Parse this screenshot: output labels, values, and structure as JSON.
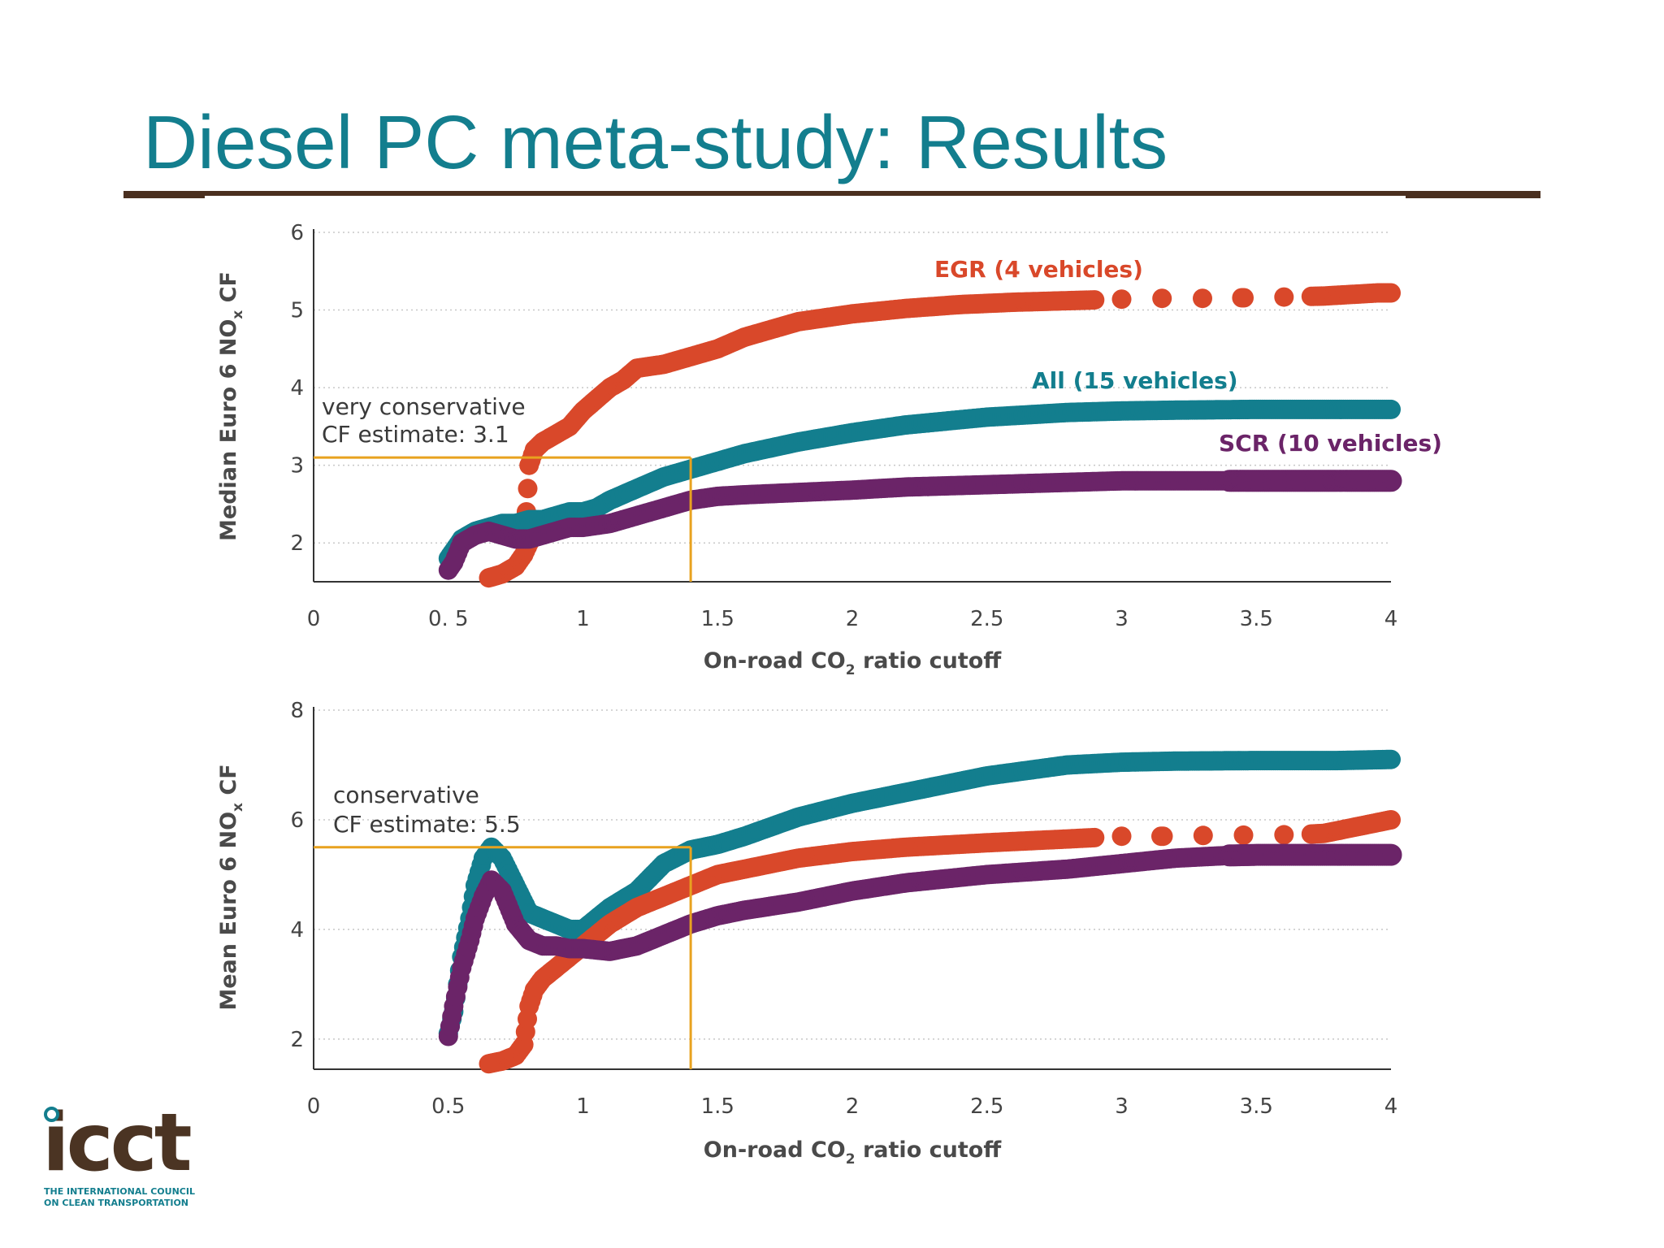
{
  "slide": {
    "title": "Diesel PC meta-study: Results"
  },
  "colors": {
    "title": "#137e8e",
    "rule": "#4a2f1f",
    "egr": "#d9482a",
    "all": "#137e8e",
    "scr": "#6b2468",
    "cutoff_line": "#e8a21f",
    "axis": "#333333",
    "grid": "#c8c8c8"
  },
  "logo": {
    "word": "icct",
    "sub1": "THE INTERNATIONAL COUNCIL",
    "sub2": "ON CLEAN TRANSPORTATION"
  },
  "chart_data": [
    {
      "type": "scatter",
      "id": "median",
      "ylabel": "Median Euro 6 NOx CF",
      "xlabel": "On-road CO2 ratio cutoff",
      "xlim": [
        0,
        4
      ],
      "ylim": [
        1.5,
        6
      ],
      "x_ticks": [
        0,
        0.5,
        1,
        1.5,
        2,
        2.5,
        3,
        3.5,
        4
      ],
      "x_tick_labels": [
        "0",
        "0. 5",
        "1",
        "1.5",
        "2",
        "2.5",
        "3",
        "3.5",
        "4"
      ],
      "y_ticks": [
        2,
        3,
        4,
        5,
        6
      ],
      "grid": "horizontal-dotted",
      "annotation": {
        "lines": [
          "very conservative",
          "CF estimate: 3.1"
        ],
        "x": 1.4,
        "y": 3.1
      },
      "series": [
        {
          "name": "EGR (4 vehicles)",
          "color": "#d9482a",
          "label_at": [
            2.3,
            5.4
          ],
          "x": [
            0.65,
            0.7,
            0.75,
            0.78,
            0.8,
            0.79,
            0.8,
            0.82,
            0.85,
            0.9,
            0.95,
            1.0,
            1.05,
            1.1,
            1.15,
            1.2,
            1.3,
            1.4,
            1.5,
            1.6,
            1.7,
            1.8,
            2.0,
            2.2,
            2.4,
            2.6,
            2.8,
            2.9,
            3.0,
            3.15,
            3.3,
            3.5,
            3.65,
            3.75,
            3.85,
            3.95,
            4.0
          ],
          "y": [
            1.55,
            1.6,
            1.7,
            1.85,
            2.0,
            2.4,
            3.0,
            3.2,
            3.3,
            3.4,
            3.5,
            3.7,
            3.85,
            4.0,
            4.1,
            4.25,
            4.3,
            4.4,
            4.5,
            4.65,
            4.75,
            4.85,
            4.95,
            5.02,
            5.07,
            5.1,
            5.12,
            5.13,
            5.14,
            5.15,
            5.15,
            5.16,
            5.17,
            5.18,
            5.2,
            5.22,
            5.22
          ]
        },
        {
          "name": "All (15 vehicles)",
          "color": "#137e8e",
          "label_at": [
            2.7,
            3.95
          ],
          "x": [
            0.5,
            0.55,
            0.6,
            0.65,
            0.7,
            0.75,
            0.8,
            0.85,
            0.9,
            0.95,
            1.0,
            1.05,
            1.1,
            1.2,
            1.3,
            1.4,
            1.5,
            1.6,
            1.8,
            2.0,
            2.2,
            2.5,
            2.8,
            3.0,
            3.2,
            3.5,
            3.8,
            4.0
          ],
          "y": [
            1.8,
            2.05,
            2.15,
            2.2,
            2.25,
            2.25,
            2.3,
            2.3,
            2.35,
            2.4,
            2.4,
            2.45,
            2.55,
            2.7,
            2.85,
            2.95,
            3.05,
            3.15,
            3.3,
            3.42,
            3.52,
            3.62,
            3.68,
            3.7,
            3.71,
            3.72,
            3.72,
            3.72
          ]
        },
        {
          "name": "SCR (10 vehicles)",
          "color": "#6b2468",
          "label_at": [
            3.35,
            3.2
          ],
          "open_from": 3.4,
          "x": [
            0.5,
            0.52,
            0.55,
            0.6,
            0.65,
            0.7,
            0.75,
            0.8,
            0.85,
            0.9,
            0.95,
            1.0,
            1.1,
            1.2,
            1.3,
            1.4,
            1.5,
            1.6,
            1.8,
            2.0,
            2.2,
            2.5,
            2.8,
            3.0,
            3.2,
            3.4,
            3.5,
            3.6,
            3.7,
            3.8,
            3.9,
            4.0
          ],
          "y": [
            1.65,
            1.75,
            2.0,
            2.1,
            2.15,
            2.1,
            2.05,
            2.05,
            2.1,
            2.15,
            2.2,
            2.2,
            2.25,
            2.35,
            2.45,
            2.55,
            2.6,
            2.62,
            2.65,
            2.68,
            2.72,
            2.75,
            2.78,
            2.8,
            2.8,
            2.8,
            2.8,
            2.8,
            2.8,
            2.8,
            2.8,
            2.8
          ]
        }
      ]
    },
    {
      "type": "scatter",
      "id": "mean",
      "ylabel": "Mean Euro 6 NOx CF",
      "xlabel": "On-road CO2 ratio cutoff",
      "xlim": [
        0,
        4
      ],
      "ylim": [
        1.45,
        8
      ],
      "x_ticks": [
        0,
        0.5,
        1,
        1.5,
        2,
        2.5,
        3,
        3.5,
        4
      ],
      "x_tick_labels": [
        "0",
        "0.5",
        "1",
        "1.5",
        "2",
        "2.5",
        "3",
        "3.5",
        "4"
      ],
      "y_ticks": [
        2,
        4,
        6,
        8
      ],
      "grid": "horizontal-dotted",
      "annotation": {
        "lines": [
          "conservative",
          "CF estimate: 5.5"
        ],
        "x": 1.4,
        "y": 5.5
      },
      "series": [
        {
          "name": "All (15 vehicles)",
          "color": "#137e8e",
          "x": [
            0.5,
            0.52,
            0.55,
            0.58,
            0.6,
            0.63,
            0.66,
            0.7,
            0.75,
            0.8,
            0.85,
            0.9,
            0.95,
            1.0,
            1.05,
            1.1,
            1.2,
            1.3,
            1.4,
            1.5,
            1.6,
            1.8,
            2.0,
            2.2,
            2.5,
            2.8,
            3.0,
            3.2,
            3.5,
            3.8,
            4.0
          ],
          "y": [
            2.1,
            2.5,
            3.5,
            4.2,
            4.8,
            5.3,
            5.5,
            5.3,
            4.8,
            4.3,
            4.2,
            4.1,
            4.0,
            4.0,
            4.2,
            4.4,
            4.7,
            5.2,
            5.45,
            5.55,
            5.7,
            6.05,
            6.3,
            6.5,
            6.8,
            7.0,
            7.05,
            7.07,
            7.08,
            7.08,
            7.1
          ]
        },
        {
          "name": "EGR (4 vehicles)",
          "color": "#d9482a",
          "x": [
            0.65,
            0.7,
            0.75,
            0.78,
            0.8,
            0.82,
            0.85,
            0.9,
            0.95,
            1.0,
            1.05,
            1.1,
            1.2,
            1.3,
            1.4,
            1.5,
            1.6,
            1.8,
            2.0,
            2.2,
            2.5,
            2.8,
            3.0,
            3.2,
            3.35,
            3.5,
            3.65,
            3.75,
            3.85,
            3.95,
            4.0
          ],
          "y": [
            1.55,
            1.6,
            1.7,
            1.9,
            2.6,
            2.9,
            3.1,
            3.3,
            3.5,
            3.7,
            3.9,
            4.1,
            4.4,
            4.6,
            4.8,
            5.0,
            5.1,
            5.3,
            5.42,
            5.5,
            5.58,
            5.65,
            5.7,
            5.7,
            5.72,
            5.72,
            5.73,
            5.75,
            5.85,
            5.95,
            6.0
          ]
        },
        {
          "name": "SCR (10 vehicles)",
          "color": "#6b2468",
          "open_from": 3.4,
          "x": [
            0.5,
            0.52,
            0.55,
            0.58,
            0.6,
            0.63,
            0.66,
            0.7,
            0.75,
            0.8,
            0.85,
            0.9,
            0.95,
            1.0,
            1.1,
            1.2,
            1.3,
            1.4,
            1.5,
            1.6,
            1.8,
            2.0,
            2.2,
            2.5,
            2.8,
            3.0,
            3.2,
            3.4,
            3.5,
            3.6,
            3.7,
            3.8,
            3.9,
            4.0
          ],
          "y": [
            2.05,
            2.6,
            3.3,
            3.8,
            4.2,
            4.6,
            4.9,
            4.7,
            4.1,
            3.8,
            3.7,
            3.7,
            3.65,
            3.65,
            3.6,
            3.7,
            3.9,
            4.1,
            4.25,
            4.35,
            4.5,
            4.7,
            4.85,
            5.0,
            5.1,
            5.2,
            5.3,
            5.35,
            5.36,
            5.36,
            5.36,
            5.36,
            5.36,
            5.36
          ]
        }
      ]
    }
  ]
}
